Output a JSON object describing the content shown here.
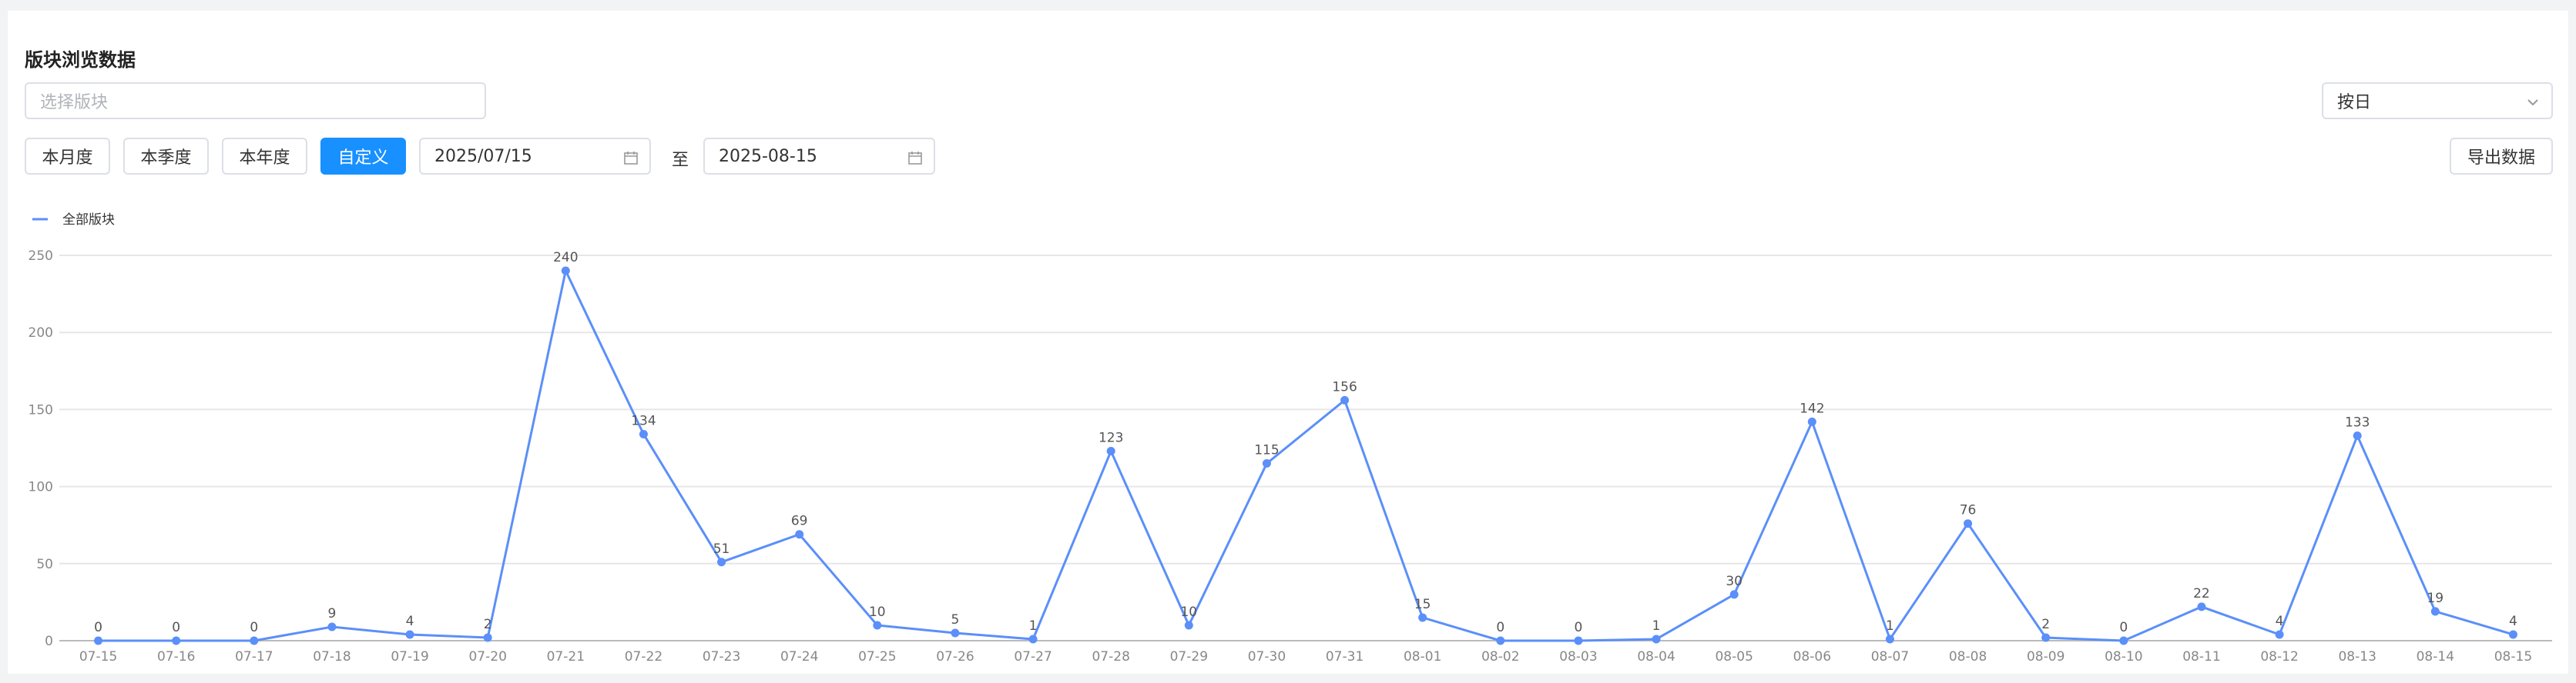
{
  "header": {
    "title": "版块浏览数据"
  },
  "controls": {
    "block_select_placeholder": "选择版块",
    "period_select": "按日",
    "buttons": [
      "本月度",
      "本季度",
      "本年度",
      "自定义"
    ],
    "start_date": "2025/07/15",
    "to": "至",
    "end_date": "2025-08-15",
    "export": "导出数据"
  },
  "chart_data": {
    "type": "line",
    "categories": [
      "07-15",
      "07-16",
      "07-17",
      "07-18",
      "07-19",
      "07-20",
      "07-21",
      "07-22",
      "07-23",
      "07-24",
      "07-25",
      "07-26",
      "07-27",
      "07-28",
      "07-29",
      "07-30",
      "07-31",
      "08-01",
      "08-02",
      "08-03",
      "08-04",
      "08-05",
      "08-06",
      "08-07",
      "08-08",
      "08-09",
      "08-10",
      "08-11",
      "08-12",
      "08-13",
      "08-14",
      "08-15"
    ],
    "series": [
      {
        "name": "全部版块",
        "color": "#5b8ff9",
        "values": [
          0,
          0,
          0,
          9,
          4,
          2,
          240,
          134,
          51,
          69,
          10,
          5,
          1,
          123,
          10,
          115,
          156,
          15,
          0,
          0,
          1,
          30,
          142,
          1,
          76,
          2,
          0,
          22,
          4,
          133,
          19,
          4
        ]
      }
    ],
    "ylim": [
      0,
      250
    ],
    "yticks": [
      0,
      50,
      100,
      150,
      200,
      250
    ],
    "grid": true,
    "legend": "top-left"
  }
}
